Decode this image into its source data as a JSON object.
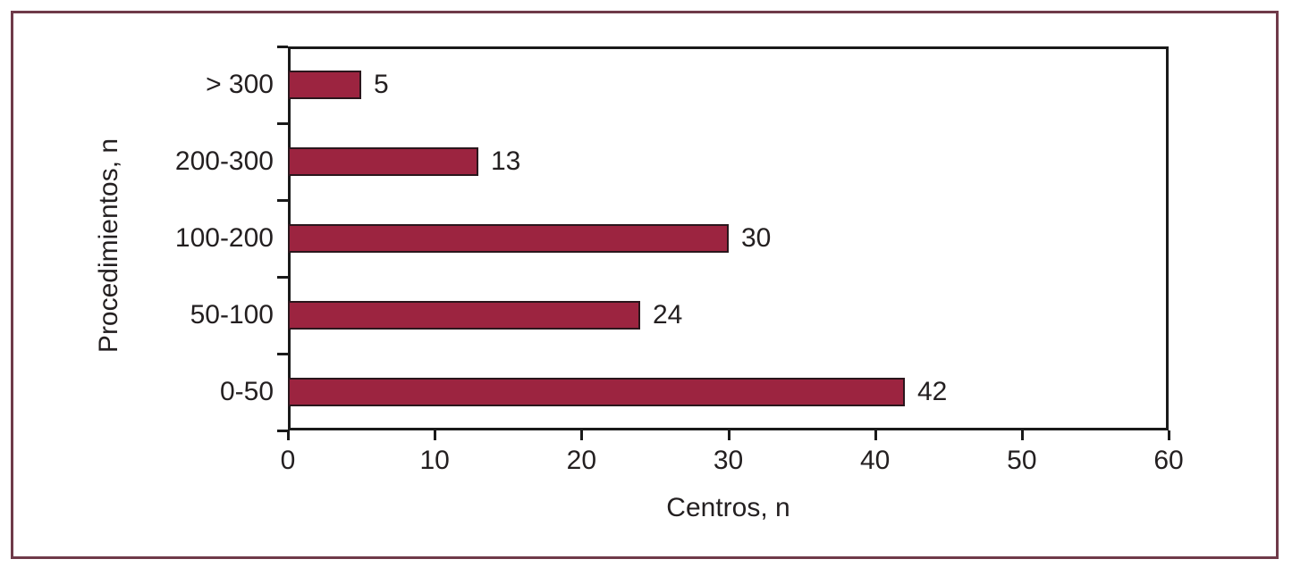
{
  "figure": {
    "background_color": "#FFFFFF",
    "border_color": "#6F3A49"
  },
  "chart_data": {
    "type": "bar",
    "orientation": "horizontal",
    "title": "",
    "xlabel": "Centros, n",
    "ylabel": "Procedimientos, n",
    "categories": [
      "> 300",
      "200-300",
      "100-200",
      "50-100",
      "0-50"
    ],
    "values": [
      5,
      13,
      30,
      24,
      42
    ],
    "value_labels": [
      "5",
      "13",
      "30",
      "24",
      "42"
    ],
    "xlim": [
      0,
      60
    ],
    "x_ticks": [
      "0",
      "10",
      "20",
      "30",
      "40",
      "50",
      "60"
    ],
    "grid": false,
    "legend": "none",
    "bar_color": "#9C2440",
    "bar_border_color": "#2A161C",
    "axis_color": "#1A1A1A",
    "text_color": "#231F20"
  }
}
